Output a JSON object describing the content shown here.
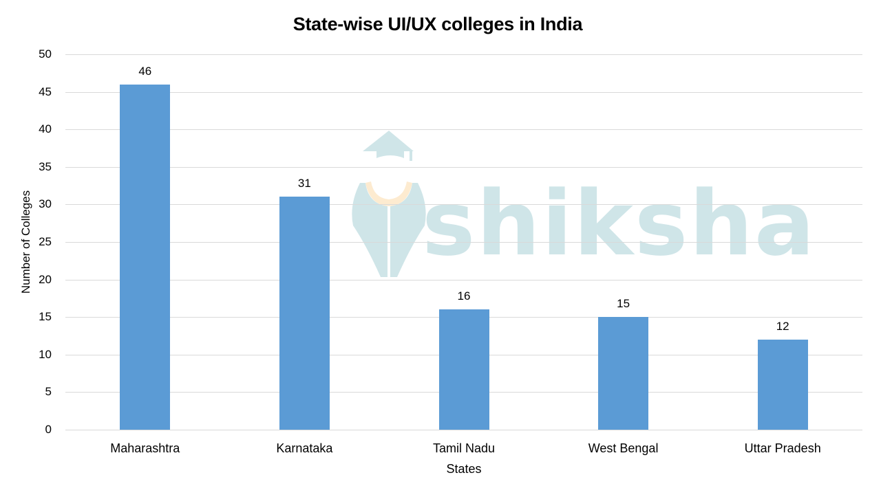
{
  "chart_data": {
    "type": "bar",
    "title": "State-wise UI/UX colleges in India",
    "xlabel": "States",
    "ylabel": "Number of Colleges",
    "categories": [
      "Maharashtra",
      "Karnataka",
      "Tamil Nadu",
      "West Bengal",
      "Uttar Pradesh"
    ],
    "values": [
      46,
      31,
      16,
      15,
      12
    ],
    "data_labels": [
      "46",
      "31",
      "16",
      "15",
      "12"
    ],
    "ylim": [
      0,
      50
    ],
    "yticks": [
      "0",
      "5",
      "10",
      "15",
      "20",
      "25",
      "30",
      "35",
      "40",
      "45",
      "50"
    ],
    "grid": true,
    "legend": "none",
    "bar_color": "#5b9bd5"
  },
  "watermark": {
    "text": "shiksha",
    "color": "#cfe5e8",
    "accent_color": "#fdebd0"
  }
}
